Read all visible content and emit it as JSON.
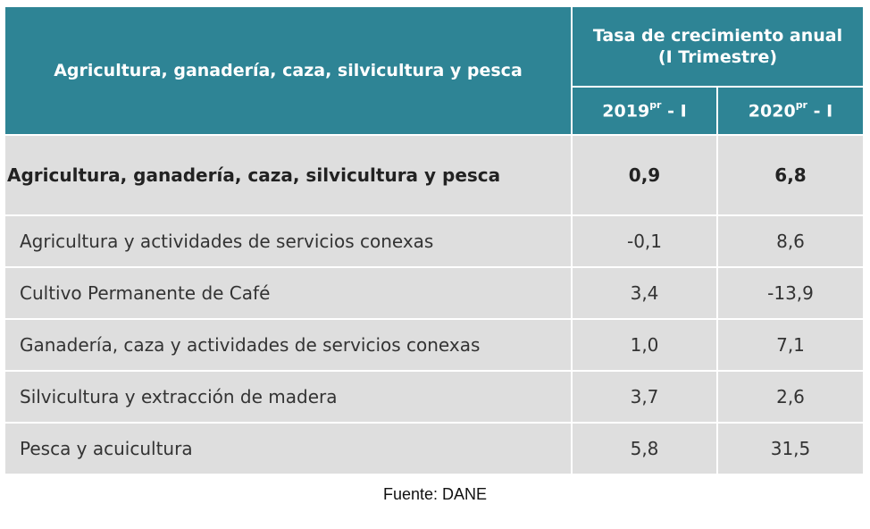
{
  "header": {
    "sector_label": "Agricultura, ganadería, caza, silvicultura y pesca",
    "rate_title_line1": "Tasa de crecimiento anual",
    "rate_title_line2": "(I Trimestre)",
    "year1": "2019",
    "year1_sup": "pr",
    "year1_suffix": " - I",
    "year2": "2020",
    "year2_sup": "pr",
    "year2_suffix": " - I"
  },
  "total_row": {
    "name": "Agricultura, ganadería, caza, silvicultura y pesca",
    "v2019": "0,9",
    "v2020": "6,8"
  },
  "rows": [
    {
      "name": "Agricultura y actividades de servicios conexas",
      "v2019": "-0,1",
      "v2020": "8,6"
    },
    {
      "name": "Cultivo Permanente de Café",
      "v2019": "3,4",
      "v2020": "-13,9"
    },
    {
      "name": "Ganadería, caza y actividades de servicios conexas",
      "v2019": "1,0",
      "v2020": "7,1"
    },
    {
      "name": "Silvicultura y extracción de madera",
      "v2019": "3,7",
      "v2020": "2,6"
    },
    {
      "name": "Pesca y acuicultura",
      "v2019": "5,8",
      "v2020": "31,5"
    }
  ],
  "footer": {
    "source": "Fuente: DANE"
  }
}
